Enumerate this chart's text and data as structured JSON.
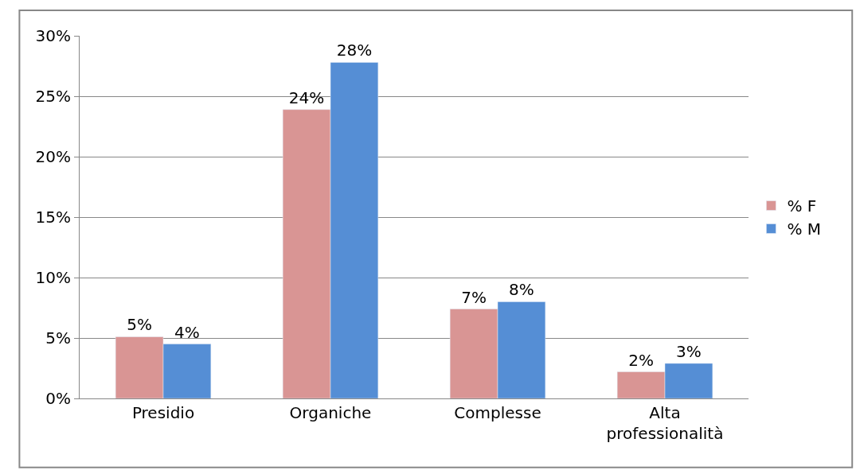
{
  "chart_data": {
    "type": "bar",
    "categories": [
      "Presidio",
      "Organiche",
      "Complesse",
      "Alta professionalità"
    ],
    "series": [
      {
        "name": "% F",
        "color": "#d99594",
        "values": [
          5.1,
          23.9,
          7.4,
          2.2
        ],
        "value_labels": [
          "5%",
          "24%",
          "7%",
          "2%"
        ]
      },
      {
        "name": "% M",
        "color": "#558ed5",
        "values": [
          4.5,
          27.8,
          8.0,
          2.9
        ],
        "value_labels": [
          "4%",
          "28%",
          "8%",
          "3%"
        ]
      }
    ],
    "ylim": [
      0,
      30
    ],
    "yticks": [
      {
        "value": 0,
        "label": "0%"
      },
      {
        "value": 5,
        "label": "5%"
      },
      {
        "value": 10,
        "label": "10%"
      },
      {
        "value": 15,
        "label": "15%"
      },
      {
        "value": 20,
        "label": "20%"
      },
      {
        "value": 25,
        "label": "25%"
      },
      {
        "value": 30,
        "label": "30%"
      }
    ],
    "grid": "y",
    "legend": "right"
  }
}
